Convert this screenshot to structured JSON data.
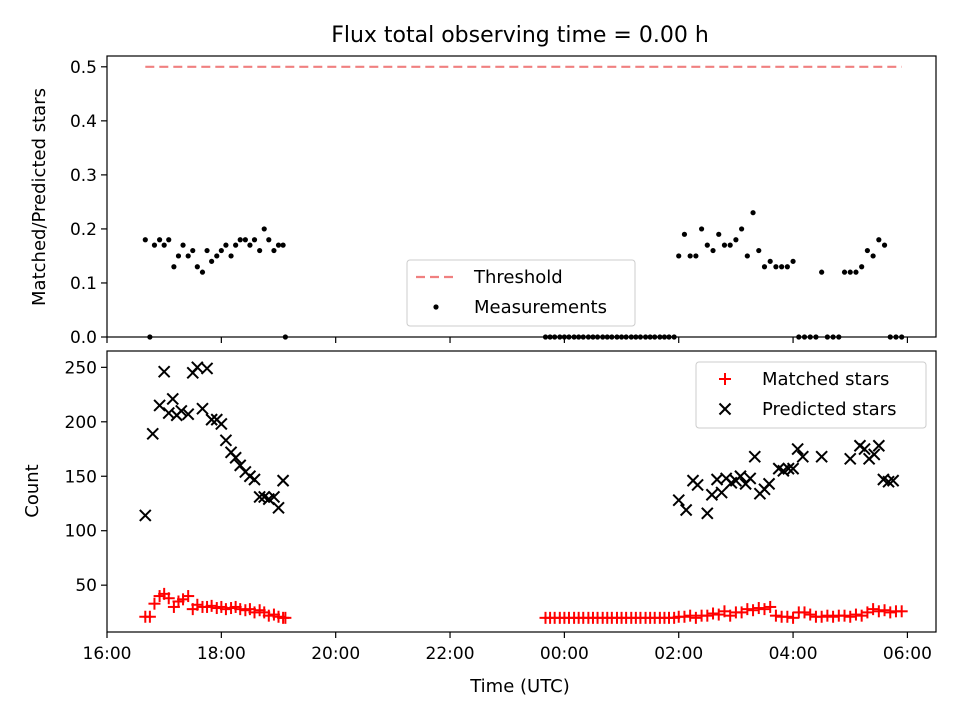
{
  "chart_data": [
    {
      "type": "scatter",
      "title": "Flux total observing time = 0.00 h",
      "ylabel": "Matched/Predicted stars",
      "xlabel": "",
      "xlim": [
        16.0,
        30.5
      ],
      "ylim": [
        0.0,
        0.52
      ],
      "yticks": [
        {
          "value": 0.0,
          "label": "0.0"
        },
        {
          "value": 0.1,
          "label": "0.1"
        },
        {
          "value": 0.2,
          "label": "0.2"
        },
        {
          "value": 0.3,
          "label": "0.3"
        },
        {
          "value": 0.4,
          "label": "0.4"
        },
        {
          "value": 0.5,
          "label": "0.5"
        }
      ],
      "legend": {
        "position": "lower-center",
        "entries": [
          "Threshold",
          "Measurements"
        ]
      },
      "series": [
        {
          "name": "Threshold",
          "style": "dashed-line",
          "color": "#f08080",
          "x": [
            16.67,
            29.9
          ],
          "y": [
            0.5,
            0.5
          ]
        },
        {
          "name": "Measurements",
          "style": "dot",
          "color": "#000000",
          "x": [
            16.67,
            16.75,
            16.83,
            16.92,
            17.0,
            17.08,
            17.17,
            17.25,
            17.33,
            17.42,
            17.5,
            17.58,
            17.67,
            17.75,
            17.83,
            17.92,
            18.0,
            18.08,
            18.17,
            18.25,
            18.33,
            18.42,
            18.5,
            18.58,
            18.67,
            18.75,
            18.83,
            18.92,
            19.0,
            19.08,
            19.12,
            23.67,
            23.75,
            23.83,
            23.92,
            24.0,
            24.08,
            24.17,
            24.25,
            24.33,
            24.42,
            24.5,
            24.58,
            24.67,
            24.75,
            24.83,
            24.92,
            25.0,
            25.08,
            25.17,
            25.25,
            25.33,
            25.42,
            25.5,
            25.58,
            25.67,
            25.75,
            25.83,
            25.92,
            26.0,
            26.1,
            26.2,
            26.3,
            26.4,
            26.5,
            26.6,
            26.7,
            26.8,
            26.9,
            27.0,
            27.1,
            27.2,
            27.3,
            27.4,
            27.5,
            27.6,
            27.7,
            27.8,
            27.9,
            28.0,
            28.1,
            28.2,
            28.3,
            28.4,
            28.5,
            28.6,
            28.7,
            28.8,
            28.9,
            29.0,
            29.1,
            29.2,
            29.3,
            29.4,
            29.5,
            29.6,
            29.7,
            29.8,
            29.9
          ],
          "y": [
            0.18,
            0.0,
            0.17,
            0.18,
            0.17,
            0.18,
            0.13,
            0.15,
            0.17,
            0.15,
            0.16,
            0.13,
            0.12,
            0.16,
            0.14,
            0.15,
            0.16,
            0.17,
            0.15,
            0.17,
            0.18,
            0.18,
            0.17,
            0.18,
            0.16,
            0.2,
            0.18,
            0.16,
            0.17,
            0.17,
            0.0,
            0.0,
            0.0,
            0.0,
            0.0,
            0.0,
            0.0,
            0.0,
            0.0,
            0.0,
            0.0,
            0.0,
            0.0,
            0.0,
            0.0,
            0.0,
            0.0,
            0.0,
            0.0,
            0.0,
            0.0,
            0.0,
            0.0,
            0.0,
            0.0,
            0.0,
            0.0,
            0.0,
            0.0,
            0.15,
            0.19,
            0.15,
            0.15,
            0.2,
            0.17,
            0.16,
            0.19,
            0.17,
            0.17,
            0.18,
            0.2,
            0.15,
            0.23,
            0.16,
            0.13,
            0.14,
            0.13,
            0.13,
            0.13,
            0.14,
            0.0,
            0.0,
            0.0,
            0.0,
            0.12,
            0.0,
            0.0,
            0.0,
            0.12,
            0.12,
            0.12,
            0.13,
            0.16,
            0.15,
            0.18,
            0.17,
            0.0,
            0.0,
            0.0
          ]
        }
      ]
    },
    {
      "type": "scatter",
      "title": "",
      "ylabel": "Count",
      "xlabel": "Time (UTC)",
      "xlim": [
        16.0,
        30.5
      ],
      "ylim": [
        7,
        265
      ],
      "xticks": [
        {
          "value": 16,
          "label": "16:00"
        },
        {
          "value": 18,
          "label": "18:00"
        },
        {
          "value": 20,
          "label": "20:00"
        },
        {
          "value": 22,
          "label": "22:00"
        },
        {
          "value": 24,
          "label": "00:00"
        },
        {
          "value": 26,
          "label": "02:00"
        },
        {
          "value": 28,
          "label": "04:00"
        },
        {
          "value": 30,
          "label": "06:00"
        }
      ],
      "yticks": [
        {
          "value": 50,
          "label": "50"
        },
        {
          "value": 100,
          "label": "100"
        },
        {
          "value": 150,
          "label": "150"
        },
        {
          "value": 200,
          "label": "200"
        },
        {
          "value": 250,
          "label": "250"
        }
      ],
      "legend": {
        "position": "upper-right",
        "entries": [
          "Matched stars",
          "Predicted stars"
        ]
      },
      "series": [
        {
          "name": "Matched stars",
          "style": "plus",
          "color": "#ff0000",
          "x": [
            16.67,
            16.75,
            16.83,
            16.92,
            17.0,
            17.08,
            17.17,
            17.25,
            17.33,
            17.42,
            17.5,
            17.58,
            17.67,
            17.75,
            17.83,
            17.92,
            18.0,
            18.08,
            18.17,
            18.25,
            18.33,
            18.42,
            18.5,
            18.58,
            18.67,
            18.75,
            18.83,
            18.92,
            19.0,
            19.08,
            19.12,
            23.67,
            23.75,
            23.83,
            23.92,
            24.0,
            24.08,
            24.17,
            24.25,
            24.33,
            24.42,
            24.5,
            24.58,
            24.67,
            24.75,
            24.83,
            24.92,
            25.0,
            25.08,
            25.17,
            25.25,
            25.33,
            25.42,
            25.5,
            25.58,
            25.67,
            25.75,
            25.83,
            25.92,
            26.0,
            26.1,
            26.2,
            26.3,
            26.4,
            26.5,
            26.6,
            26.7,
            26.8,
            26.9,
            27.0,
            27.1,
            27.2,
            27.3,
            27.4,
            27.5,
            27.6,
            27.7,
            27.8,
            27.9,
            28.0,
            28.1,
            28.2,
            28.3,
            28.4,
            28.5,
            28.6,
            28.7,
            28.8,
            28.9,
            29.0,
            29.1,
            29.2,
            29.3,
            29.4,
            29.5,
            29.6,
            29.7,
            29.8,
            29.9
          ],
          "y": [
            21,
            21,
            33,
            40,
            42,
            38,
            30,
            35,
            37,
            40,
            28,
            32,
            30,
            30,
            31,
            29,
            30,
            28,
            29,
            30,
            28,
            27,
            28,
            25,
            27,
            25,
            22,
            23,
            21,
            20,
            20,
            20,
            20,
            20,
            20,
            20,
            20,
            20,
            20,
            20,
            20,
            20,
            20,
            20,
            20,
            20,
            20,
            20,
            20,
            20,
            20,
            20,
            20,
            20,
            20,
            20,
            20,
            20,
            20,
            21,
            21,
            22,
            20,
            22,
            22,
            24,
            23,
            26,
            22,
            25,
            25,
            28,
            27,
            29,
            28,
            30,
            22,
            21,
            21,
            20,
            25,
            25,
            23,
            21,
            21,
            22,
            21,
            22,
            22,
            21,
            23,
            22,
            25,
            28,
            26,
            27,
            25,
            26,
            26
          ]
        },
        {
          "name": "Predicted stars",
          "style": "x",
          "color": "#000000",
          "x": [
            16.67,
            16.8,
            16.92,
            17.0,
            17.08,
            17.15,
            17.22,
            17.3,
            17.42,
            17.5,
            17.58,
            17.67,
            17.75,
            17.83,
            17.92,
            18.0,
            18.08,
            18.17,
            18.25,
            18.33,
            18.42,
            18.5,
            18.58,
            18.67,
            18.75,
            18.83,
            18.92,
            19.0,
            19.08,
            26.0,
            26.13,
            26.25,
            26.33,
            26.5,
            26.58,
            26.67,
            26.75,
            26.83,
            26.92,
            27.0,
            27.08,
            27.17,
            27.25,
            27.33,
            27.42,
            27.5,
            27.58,
            27.75,
            27.83,
            27.92,
            28.0,
            28.08,
            28.17,
            28.5,
            29.0,
            29.17,
            29.25,
            29.33,
            29.42,
            29.5,
            29.58,
            29.67,
            29.75
          ],
          "y": [
            114,
            189,
            215,
            246,
            208,
            221,
            206,
            210,
            207,
            245,
            250,
            212,
            249,
            202,
            202,
            198,
            183,
            172,
            167,
            160,
            154,
            150,
            147,
            131,
            131,
            129,
            131,
            121,
            146,
            128,
            119,
            146,
            142,
            116,
            133,
            147,
            135,
            148,
            144,
            146,
            150,
            143,
            148,
            168,
            134,
            138,
            143,
            157,
            155,
            157,
            157,
            175,
            168,
            168,
            166,
            178,
            175,
            166,
            170,
            178,
            147,
            145,
            146
          ]
        }
      ]
    }
  ]
}
